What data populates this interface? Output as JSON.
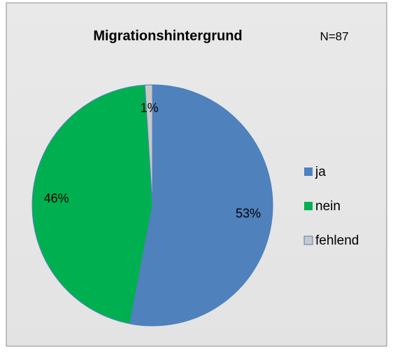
{
  "chart_data": {
    "type": "pie",
    "title": "Migrationshintergrund",
    "annotation": "N=87",
    "categories": [
      "ja",
      "nein",
      "fehlend"
    ],
    "values": [
      53,
      46,
      1
    ],
    "value_labels": [
      "53%",
      "46%",
      "1%"
    ],
    "colors": [
      "#4f81bd",
      "#00b050",
      "#c8c8c8"
    ],
    "legend": "right"
  }
}
